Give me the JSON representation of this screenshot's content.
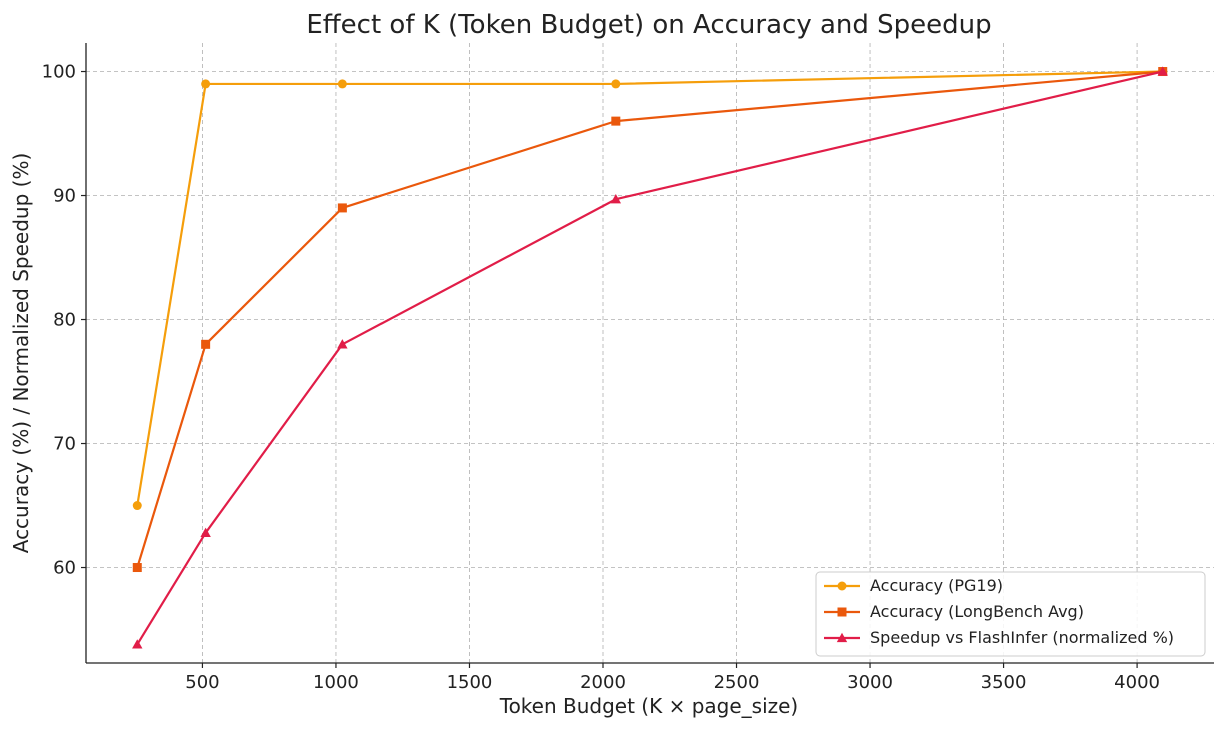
{
  "chart_data": {
    "type": "line",
    "title": "Effect of K (Token Budget) on Accuracy and Speedup",
    "xlabel": "Token Budget (K × page_size)",
    "ylabel": "Accuracy (%) / Normalized Speedup (%)",
    "x": [
      256,
      512,
      1024,
      2048,
      4096
    ],
    "xlim": [
      64,
      4288
    ],
    "ylim": [
      52.3,
      102.3
    ],
    "xticks": [
      500,
      1000,
      1500,
      2000,
      2500,
      3000,
      3500,
      4000
    ],
    "yticks": [
      60,
      70,
      80,
      90,
      100
    ],
    "grid": true,
    "legend_position": "lower-right",
    "series": [
      {
        "name": "Accuracy (PG19)",
        "values": [
          65,
          99,
          99,
          99,
          100
        ],
        "color": "#F59E0B",
        "marker": "circle"
      },
      {
        "name": "Accuracy (LongBench Avg)",
        "values": [
          60,
          78,
          89,
          96,
          100
        ],
        "color": "#EA580C",
        "marker": "square"
      },
      {
        "name": "Speedup vs FlashInfer (normalized %)",
        "values": [
          53.8,
          62.8,
          78,
          89.7,
          100
        ],
        "color": "#E11D48",
        "marker": "triangle"
      }
    ]
  }
}
